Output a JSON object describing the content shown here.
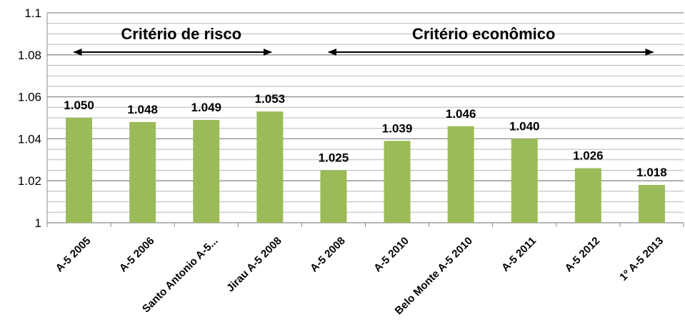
{
  "chart_data": {
    "type": "bar",
    "categories": [
      "A-5 2005",
      "A-5 2006",
      "Santo Antonio A-5...",
      "Jirau A-5 2008",
      "A-5 2008",
      "A-5 2010",
      "Belo Monte A-5 2010",
      "A-5 2011",
      "A-5 2012",
      "1º A-5 2013"
    ],
    "values": [
      1.05,
      1.048,
      1.049,
      1.053,
      1.025,
      1.039,
      1.046,
      1.04,
      1.026,
      1.018
    ],
    "data_labels": [
      "1.050",
      "1.048",
      "1.049",
      "1.053",
      "1.025",
      "1.039",
      "1.046",
      "1.040",
      "1.026",
      "1.018"
    ],
    "ylim": [
      1,
      1.1
    ],
    "yticks": [
      "1",
      "1.02",
      "1.04",
      "1.06",
      "1.08",
      "1.1"
    ],
    "bar_color": "#9bbb59",
    "grid": true,
    "annotations": [
      {
        "text": "Critério de risco",
        "span": [
          0,
          3
        ]
      },
      {
        "text": "Critério econômico",
        "span": [
          4,
          9
        ]
      }
    ]
  }
}
